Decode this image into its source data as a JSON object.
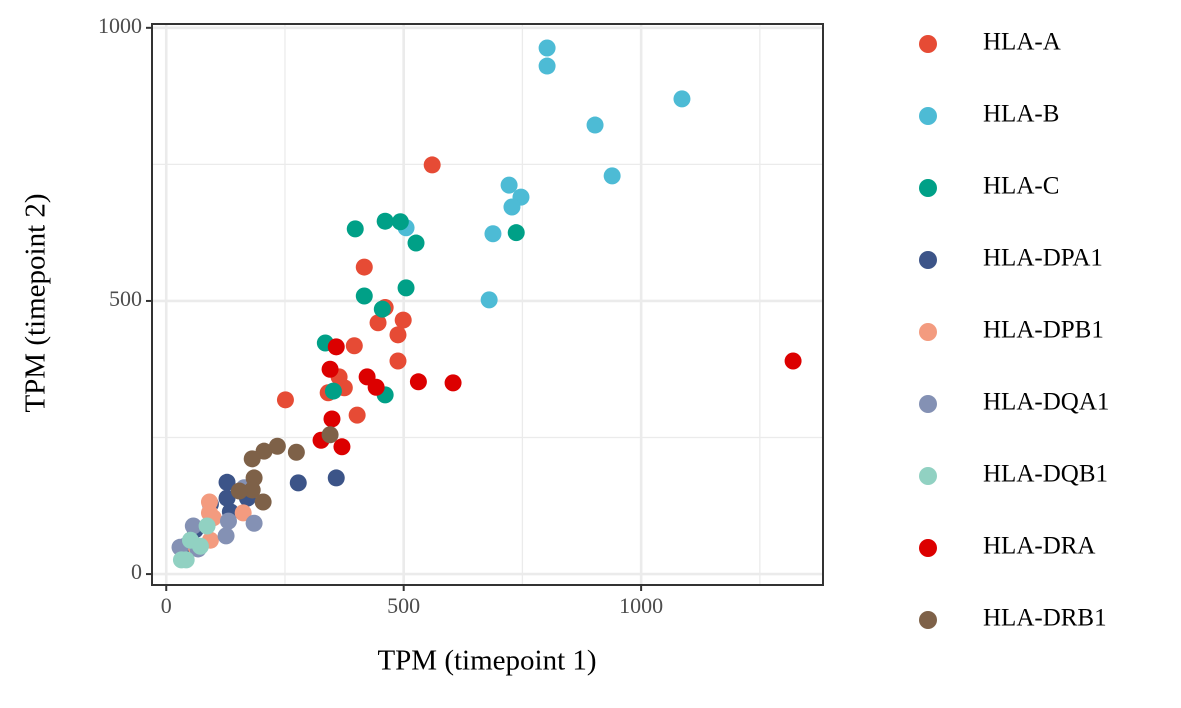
{
  "chart_data": {
    "type": "scatter",
    "x_label": "TPM (timepoint 1)",
    "y_label": "TPM (timepoint 2)",
    "xlim": [
      -30,
      1383
    ],
    "ylim": [
      -20,
      1007
    ],
    "xticks": [
      0,
      500,
      1000
    ],
    "yticks": [
      0,
      500,
      1000
    ],
    "x_minor_grid": [
      250,
      750,
      1250
    ],
    "y_minor_grid": [
      250,
      750
    ],
    "grid": true,
    "legend": "right",
    "series": [
      {
        "name": "HLA-A",
        "color": "#E64B35",
        "x": [
          560,
          417,
          461,
          446,
          499,
          488,
          396,
          488,
          251,
          402,
          364,
          341,
          375
        ],
        "values": [
          749,
          562,
          488,
          460,
          465,
          438,
          418,
          390,
          319,
          291,
          361,
          332,
          341
        ]
      },
      {
        "name": "HLA-B",
        "color": "#4DBBD5",
        "x": [
          802,
          802,
          903,
          1086,
          939,
          722,
          747,
          728,
          688,
          505,
          680
        ],
        "values": [
          963,
          930,
          822,
          870,
          729,
          712,
          690,
          672,
          623,
          634,
          502
        ]
      },
      {
        "name": "HLA-C",
        "color": "#00A087",
        "x": [
          398,
          461,
          493,
          526,
          737,
          505,
          417,
          455,
          335,
          352,
          461
        ],
        "values": [
          632,
          646,
          645,
          606,
          625,
          524,
          509,
          485,
          423,
          335,
          328
        ]
      },
      {
        "name": "HLA-DPA1",
        "color": "#3C5488",
        "x": [
          278,
          358,
          128,
          171,
          128,
          93,
          135,
          61,
          40
        ],
        "values": [
          167,
          176,
          168,
          139,
          139,
          128,
          114,
          81,
          51
        ]
      },
      {
        "name": "HLA-DPB1",
        "color": "#F39B7F",
        "x": [
          91,
          91,
          99,
          162,
          93,
          63
        ],
        "values": [
          132,
          112,
          103,
          112,
          62,
          49
        ]
      },
      {
        "name": "HLA-DQA1",
        "color": "#8491B4",
        "x": [
          57,
          185,
          131,
          126,
          29,
          67,
          164
        ],
        "values": [
          88,
          93,
          97,
          70,
          49,
          46,
          158
        ]
      },
      {
        "name": "HLA-DQB1",
        "color": "#91D1C2",
        "x": [
          86,
          51,
          32,
          42,
          72
        ],
        "values": [
          88,
          62,
          26,
          26,
          51
        ]
      },
      {
        "name": "HLA-DRA",
        "color": "#DC0000",
        "x": [
          1320,
          604,
          531,
          358,
          345,
          423,
          442,
          349,
          370,
          326
        ],
        "values": [
          390,
          350,
          352,
          416,
          375,
          361,
          342,
          284,
          233,
          245
        ]
      },
      {
        "name": "HLA-DRB1",
        "color": "#7E6148",
        "x": [
          234,
          206,
          181,
          274,
          185,
          181,
          204,
          345,
          154
        ],
        "values": [
          234,
          225,
          211,
          223,
          176,
          154,
          132,
          255,
          152
        ]
      }
    ]
  }
}
